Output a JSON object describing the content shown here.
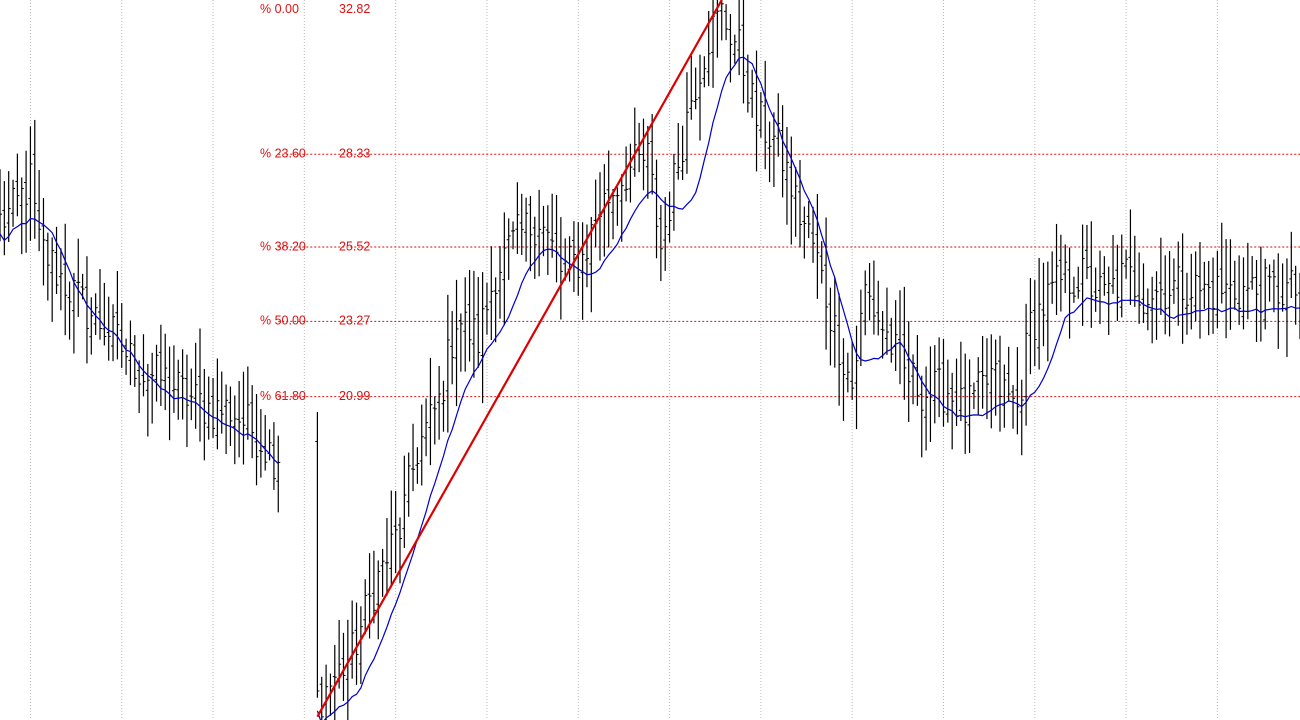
{
  "chart_data": {
    "type": "ohlc",
    "title": "",
    "xlabel": "",
    "ylabel": "",
    "grid": "vertical-dotted",
    "ylim": [
      11.2,
      33.0
    ],
    "x_count": 300,
    "colors": {
      "bars": "#000000",
      "moving_average": "#0000cc",
      "trendline": "#dd0000",
      "fib": "#dd1111",
      "grid": "#bbbbbb",
      "background": "#ffffff"
    },
    "price_path": [
      [
        0,
        26.3
      ],
      [
        3,
        26.6
      ],
      [
        7,
        27.5
      ],
      [
        9,
        25.6
      ],
      [
        14,
        24.6
      ],
      [
        20,
        23.6
      ],
      [
        25,
        23.0
      ],
      [
        29,
        22.3
      ],
      [
        33,
        21.7
      ],
      [
        38,
        21.5
      ],
      [
        43,
        21.0
      ],
      [
        49,
        20.6
      ],
      [
        53,
        20.6
      ],
      [
        58,
        20.0
      ],
      [
        63,
        19.2
      ],
      [
        69,
        19.8
      ],
      [
        72,
        19.3
      ],
      [
        73,
        11.8
      ],
      [
        76,
        12.3
      ],
      [
        81,
        13.2
      ],
      [
        86,
        15.2
      ],
      [
        92,
        17.0
      ],
      [
        96,
        19.4
      ],
      [
        101,
        20.8
      ],
      [
        105,
        23.4
      ],
      [
        110,
        22.7
      ],
      [
        114,
        24.8
      ],
      [
        119,
        25.8
      ],
      [
        124,
        26.4
      ],
      [
        129,
        24.8
      ],
      [
        134,
        25.2
      ],
      [
        138,
        26.7
      ],
      [
        144,
        27.8
      ],
      [
        149,
        28.2
      ],
      [
        152,
        25.5
      ],
      [
        155,
        27.5
      ],
      [
        159,
        30.1
      ],
      [
        163,
        31.9
      ],
      [
        166,
        32.6
      ],
      [
        170,
        31.5
      ],
      [
        174,
        29.4
      ],
      [
        179,
        28.6
      ],
      [
        184,
        26.5
      ],
      [
        187,
        25.6
      ],
      [
        191,
        23.5
      ],
      [
        196,
        21.3
      ],
      [
        199,
        24.2
      ],
      [
        203,
        23.1
      ],
      [
        208,
        21.7
      ],
      [
        213,
        21.1
      ],
      [
        218,
        21.2
      ],
      [
        222,
        20.5
      ],
      [
        228,
        21.6
      ],
      [
        234,
        20.6
      ],
      [
        237,
        23.2
      ],
      [
        244,
        24.5
      ],
      [
        249,
        24.6
      ],
      [
        254,
        24.0
      ],
      [
        259,
        24.7
      ],
      [
        263,
        24.1
      ],
      [
        269,
        24.3
      ],
      [
        273,
        24.4
      ],
      [
        276,
        24.2
      ]
    ],
    "moving_average_period": 10,
    "trendline": {
      "from": {
        "x": 73,
        "y": 11.3
      },
      "to": {
        "x": 166,
        "y": 33.0
      }
    },
    "fib_levels": [
      {
        "pct": "% 0.00",
        "value": "32.82",
        "price": 32.82
      },
      {
        "pct": "% 23.60",
        "value": "28.33",
        "price": 28.33
      },
      {
        "pct": "% 38.20",
        "value": "25.52",
        "price": 25.52
      },
      {
        "pct": "% 50.00",
        "value": "23.27",
        "price": 23.27
      },
      {
        "pct": "% 61.80",
        "value": "20.99",
        "price": 20.99
      }
    ],
    "fib_line_start_x": 64,
    "vertical_gridlines_x": [
      7,
      28,
      49,
      70,
      91,
      112,
      133,
      154,
      175,
      196,
      217,
      238,
      259,
      280
    ]
  }
}
